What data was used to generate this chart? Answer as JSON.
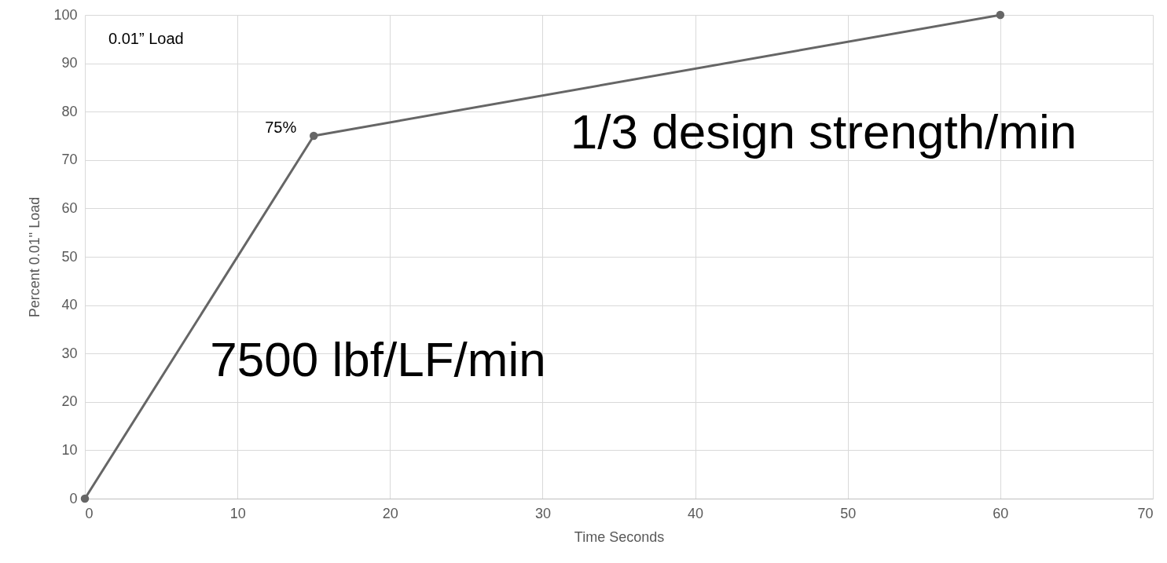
{
  "chart_data": {
    "type": "line",
    "xlabel": "Time Seconds",
    "ylabel": "Percent 0.01\" Load",
    "x": [
      0,
      15,
      60
    ],
    "series": [
      {
        "color": "#666666",
        "values": [
          0,
          75,
          100
        ]
      }
    ],
    "xlim": [
      0,
      70
    ],
    "xticks": [
      0,
      10,
      20,
      30,
      40,
      50,
      60,
      70
    ],
    "ylim": [
      0,
      100
    ],
    "yticks": [
      0,
      10,
      20,
      30,
      40,
      50,
      60,
      70,
      80,
      90,
      100
    ],
    "grid": true,
    "marker": "circle",
    "line_style": "solid",
    "annotations": [
      "0.01” Load",
      {
        "text": "75%",
        "x": 15,
        "y": 75
      },
      "1/3 design strength/min",
      "7500 lbf/LF/min"
    ]
  }
}
